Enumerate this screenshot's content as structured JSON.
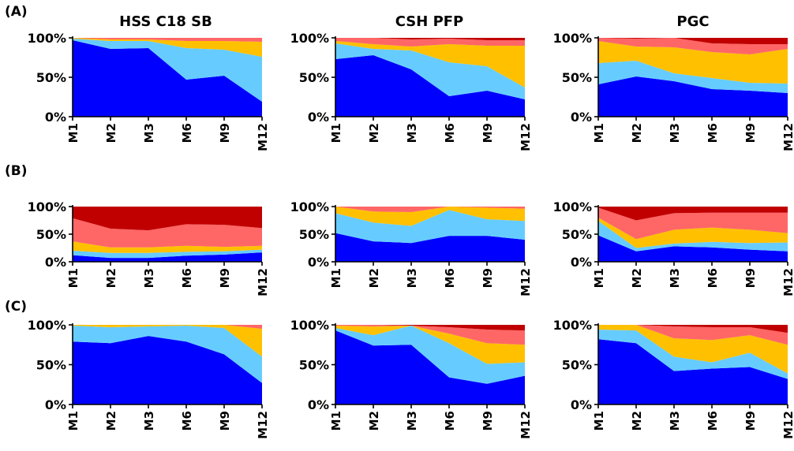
{
  "figure": {
    "column_titles": [
      "HSS C18 SB",
      "CSH PFP",
      "PGC"
    ],
    "row_labels": [
      "(A)",
      "(B)",
      "(C)"
    ],
    "colors": [
      "#0000ff",
      "#66ccff",
      "#ffc000",
      "#ff6666",
      "#c00000"
    ]
  },
  "chart_data": [
    {
      "type": "area",
      "stacked": true,
      "panel": "A-HSS C18 SB",
      "title": "HSS C18 SB",
      "x": [
        "M1",
        "M2",
        "M3",
        "M6",
        "M9",
        "M12"
      ],
      "yticks": [
        "0%",
        "50%",
        "100%"
      ],
      "ylim": [
        0,
        100
      ],
      "series": [
        {
          "values": [
            97,
            86,
            87,
            47,
            52,
            19
          ]
        },
        {
          "values": [
            2,
            10,
            9,
            40,
            33,
            57
          ]
        },
        {
          "values": [
            1,
            2,
            2,
            9,
            11,
            19
          ]
        },
        {
          "values": [
            0,
            2,
            2,
            4,
            4,
            5
          ]
        },
        {
          "values": [
            0,
            0,
            0,
            0,
            0,
            0
          ]
        }
      ]
    },
    {
      "type": "area",
      "stacked": true,
      "panel": "A-CSH PFP",
      "title": "CSH PFP",
      "x": [
        "M1",
        "M2",
        "M3",
        "M6",
        "M9",
        "M12"
      ],
      "yticks": [
        "0%",
        "50%",
        "100%"
      ],
      "ylim": [
        0,
        100
      ],
      "series": [
        {
          "values": [
            73,
            78,
            60,
            26,
            33,
            22
          ]
        },
        {
          "values": [
            20,
            8,
            24,
            43,
            31,
            15
          ]
        },
        {
          "values": [
            3,
            6,
            5,
            23,
            26,
            53
          ]
        },
        {
          "values": [
            4,
            8,
            9,
            7,
            7,
            7
          ]
        },
        {
          "values": [
            0,
            0,
            2,
            1,
            3,
            3
          ]
        }
      ]
    },
    {
      "type": "area",
      "stacked": true,
      "panel": "A-PGC",
      "title": "PGC",
      "x": [
        "M1",
        "M2",
        "M3",
        "M6",
        "M9",
        "M12"
      ],
      "yticks": [
        "0%",
        "50%",
        "100%"
      ],
      "ylim": [
        0,
        100
      ],
      "series": [
        {
          "values": [
            41,
            51,
            45,
            35,
            33,
            30
          ]
        },
        {
          "values": [
            27,
            20,
            10,
            14,
            10,
            12
          ]
        },
        {
          "values": [
            28,
            18,
            33,
            33,
            36,
            44
          ]
        },
        {
          "values": [
            4,
            10,
            12,
            11,
            13,
            6
          ]
        },
        {
          "values": [
            0,
            1,
            0,
            7,
            8,
            8
          ]
        }
      ]
    },
    {
      "type": "area",
      "stacked": true,
      "panel": "B-HSS C18 SB",
      "title": "",
      "x": [
        "M1",
        "M2",
        "M3",
        "M6",
        "M9",
        "M12"
      ],
      "yticks": [
        "0%",
        "50%",
        "100%"
      ],
      "ylim": [
        0,
        100
      ],
      "series": [
        {
          "values": [
            12,
            7,
            7,
            11,
            13,
            17
          ]
        },
        {
          "values": [
            8,
            9,
            9,
            7,
            6,
            5
          ]
        },
        {
          "values": [
            17,
            10,
            10,
            11,
            8,
            7
          ]
        },
        {
          "values": [
            42,
            34,
            31,
            39,
            40,
            32
          ]
        },
        {
          "values": [
            21,
            40,
            43,
            32,
            33,
            39
          ]
        }
      ]
    },
    {
      "type": "area",
      "stacked": true,
      "panel": "B-CSH PFP",
      "title": "",
      "x": [
        "M1",
        "M2",
        "M3",
        "M6",
        "M9",
        "M12"
      ],
      "yticks": [
        "0%",
        "50%",
        "100%"
      ],
      "ylim": [
        0,
        100
      ],
      "series": [
        {
          "values": [
            52,
            37,
            34,
            47,
            47,
            40
          ]
        },
        {
          "values": [
            36,
            34,
            31,
            47,
            30,
            34
          ]
        },
        {
          "values": [
            12,
            20,
            25,
            6,
            21,
            22
          ]
        },
        {
          "values": [
            0,
            9,
            10,
            0,
            2,
            4
          ]
        },
        {
          "values": [
            0,
            0,
            0,
            0,
            0,
            0
          ]
        }
      ]
    },
    {
      "type": "area",
      "stacked": true,
      "panel": "B-PGC",
      "title": "",
      "x": [
        "M1",
        "M2",
        "M3",
        "M6",
        "M9",
        "M12"
      ],
      "yticks": [
        "0%",
        "50%",
        "100%"
      ],
      "ylim": [
        0,
        100
      ],
      "series": [
        {
          "values": [
            48,
            19,
            28,
            26,
            22,
            19
          ]
        },
        {
          "values": [
            26,
            6,
            5,
            10,
            12,
            16
          ]
        },
        {
          "values": [
            6,
            16,
            25,
            26,
            24,
            17
          ]
        },
        {
          "values": [
            18,
            34,
            30,
            27,
            31,
            37
          ]
        },
        {
          "values": [
            2,
            25,
            12,
            11,
            11,
            11
          ]
        }
      ]
    },
    {
      "type": "area",
      "stacked": true,
      "panel": "C-HSS C18 SB",
      "title": "",
      "x": [
        "M1",
        "M2",
        "M3",
        "M6",
        "M9",
        "M12"
      ],
      "yticks": [
        "0%",
        "50%",
        "100%"
      ],
      "ylim": [
        0,
        100
      ],
      "series": [
        {
          "values": [
            79,
            77,
            86,
            79,
            63,
            27
          ]
        },
        {
          "values": [
            20,
            20,
            12,
            20,
            33,
            33
          ]
        },
        {
          "values": [
            1,
            3,
            2,
            1,
            4,
            35
          ]
        },
        {
          "values": [
            0,
            0,
            0,
            0,
            0,
            5
          ]
        },
        {
          "values": [
            0,
            0,
            0,
            0,
            0,
            0
          ]
        }
      ]
    },
    {
      "type": "area",
      "stacked": true,
      "panel": "C-CSH PFP",
      "title": "",
      "x": [
        "M1",
        "M2",
        "M3",
        "M6",
        "M9",
        "M12"
      ],
      "yticks": [
        "0%",
        "50%",
        "100%"
      ],
      "ylim": [
        0,
        100
      ],
      "series": [
        {
          "values": [
            93,
            74,
            75,
            34,
            26,
            36
          ]
        },
        {
          "values": [
            3,
            13,
            24,
            43,
            25,
            17
          ]
        },
        {
          "values": [
            3,
            11,
            0,
            12,
            26,
            22
          ]
        },
        {
          "values": [
            1,
            2,
            0,
            8,
            17,
            18
          ]
        },
        {
          "values": [
            0,
            0,
            1,
            3,
            6,
            7
          ]
        }
      ]
    },
    {
      "type": "area",
      "stacked": true,
      "panel": "C-PGC",
      "title": "",
      "x": [
        "M1",
        "M2",
        "M3",
        "M6",
        "M9",
        "M12"
      ],
      "yticks": [
        "0%",
        "50%",
        "100%"
      ],
      "ylim": [
        0,
        100
      ],
      "series": [
        {
          "values": [
            82,
            77,
            42,
            45,
            47,
            32
          ]
        },
        {
          "values": [
            12,
            16,
            18,
            8,
            18,
            7
          ]
        },
        {
          "values": [
            6,
            7,
            23,
            28,
            22,
            36
          ]
        },
        {
          "values": [
            0,
            0,
            15,
            16,
            10,
            15
          ]
        },
        {
          "values": [
            0,
            0,
            2,
            3,
            3,
            10
          ]
        }
      ]
    }
  ]
}
